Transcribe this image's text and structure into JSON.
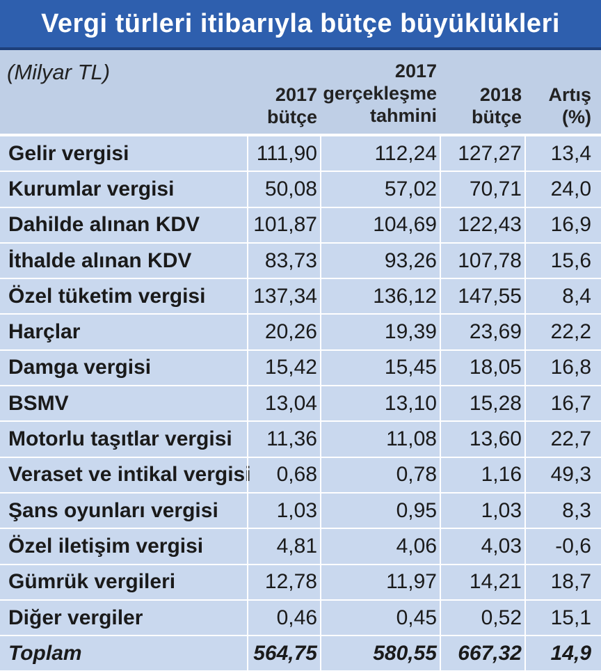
{
  "title": "Vergi türleri itibarıyla bütçe büyüklükleri",
  "unit": "(Milyar TL)",
  "columns": [
    {
      "line1": "2017",
      "line2": "bütçe"
    },
    {
      "line0": "2017",
      "line1": "gerçekleşme",
      "line2": "tahmini"
    },
    {
      "line1": "2018",
      "line2": "bütçe"
    },
    {
      "line1": "Artış",
      "line2": "(%)"
    }
  ],
  "colors": {
    "banner": "#2e5fae",
    "header_bg": "#bfcfe6",
    "row_bg": "#c9d8ee"
  },
  "chart_data": {
    "type": "table",
    "title": "Vergi türleri itibarıyla bütçe büyüklükleri",
    "columns": [
      "2017 bütçe",
      "2017 gerçekleşme tahmini",
      "2018 bütçe",
      "Artış (%)"
    ],
    "rows": [
      {
        "name": "Gelir vergisi",
        "values": [
          "111,90",
          "112,24",
          "127,27",
          "13,4"
        ]
      },
      {
        "name": "Kurumlar vergisi",
        "values": [
          "50,08",
          "57,02",
          "70,71",
          "24,0"
        ]
      },
      {
        "name": "Dahilde alınan KDV",
        "values": [
          "101,87",
          "104,69",
          "122,43",
          "16,9"
        ]
      },
      {
        "name": "İthalde alınan KDV",
        "values": [
          "83,73",
          "93,26",
          "107,78",
          "15,6"
        ]
      },
      {
        "name": "Özel tüketim vergisi",
        "values": [
          "137,34",
          "136,12",
          "147,55",
          "8,4"
        ]
      },
      {
        "name": "Harçlar",
        "values": [
          "20,26",
          "19,39",
          "23,69",
          "22,2"
        ]
      },
      {
        "name": "Damga vergisi",
        "values": [
          "15,42",
          "15,45",
          "18,05",
          "16,8"
        ]
      },
      {
        "name": "BSMV",
        "values": [
          "13,04",
          "13,10",
          "15,28",
          "16,7"
        ]
      },
      {
        "name": "Motorlu taşıtlar vergisi",
        "values": [
          "11,36",
          "11,08",
          "13,60",
          "22,7"
        ]
      },
      {
        "name": "Veraset ve intikal vergisi",
        "values": [
          "0,68",
          "0,78",
          "1,16",
          "49,3"
        ]
      },
      {
        "name": "Şans oyunları vergisi",
        "values": [
          "1,03",
          "0,95",
          "1,03",
          "8,3"
        ]
      },
      {
        "name": "Özel iletişim vergisi",
        "values": [
          "4,81",
          "4,06",
          "4,03",
          "-0,6"
        ]
      },
      {
        "name": "Gümrük vergileri",
        "values": [
          "12,78",
          "11,97",
          "14,21",
          "18,7"
        ]
      },
      {
        "name": "Diğer vergiler",
        "values": [
          "0,46",
          "0,45",
          "0,52",
          "15,1"
        ]
      }
    ],
    "total": {
      "name": "Toplam",
      "values": [
        "564,75",
        "580,55",
        "667,32",
        "14,9"
      ]
    }
  }
}
